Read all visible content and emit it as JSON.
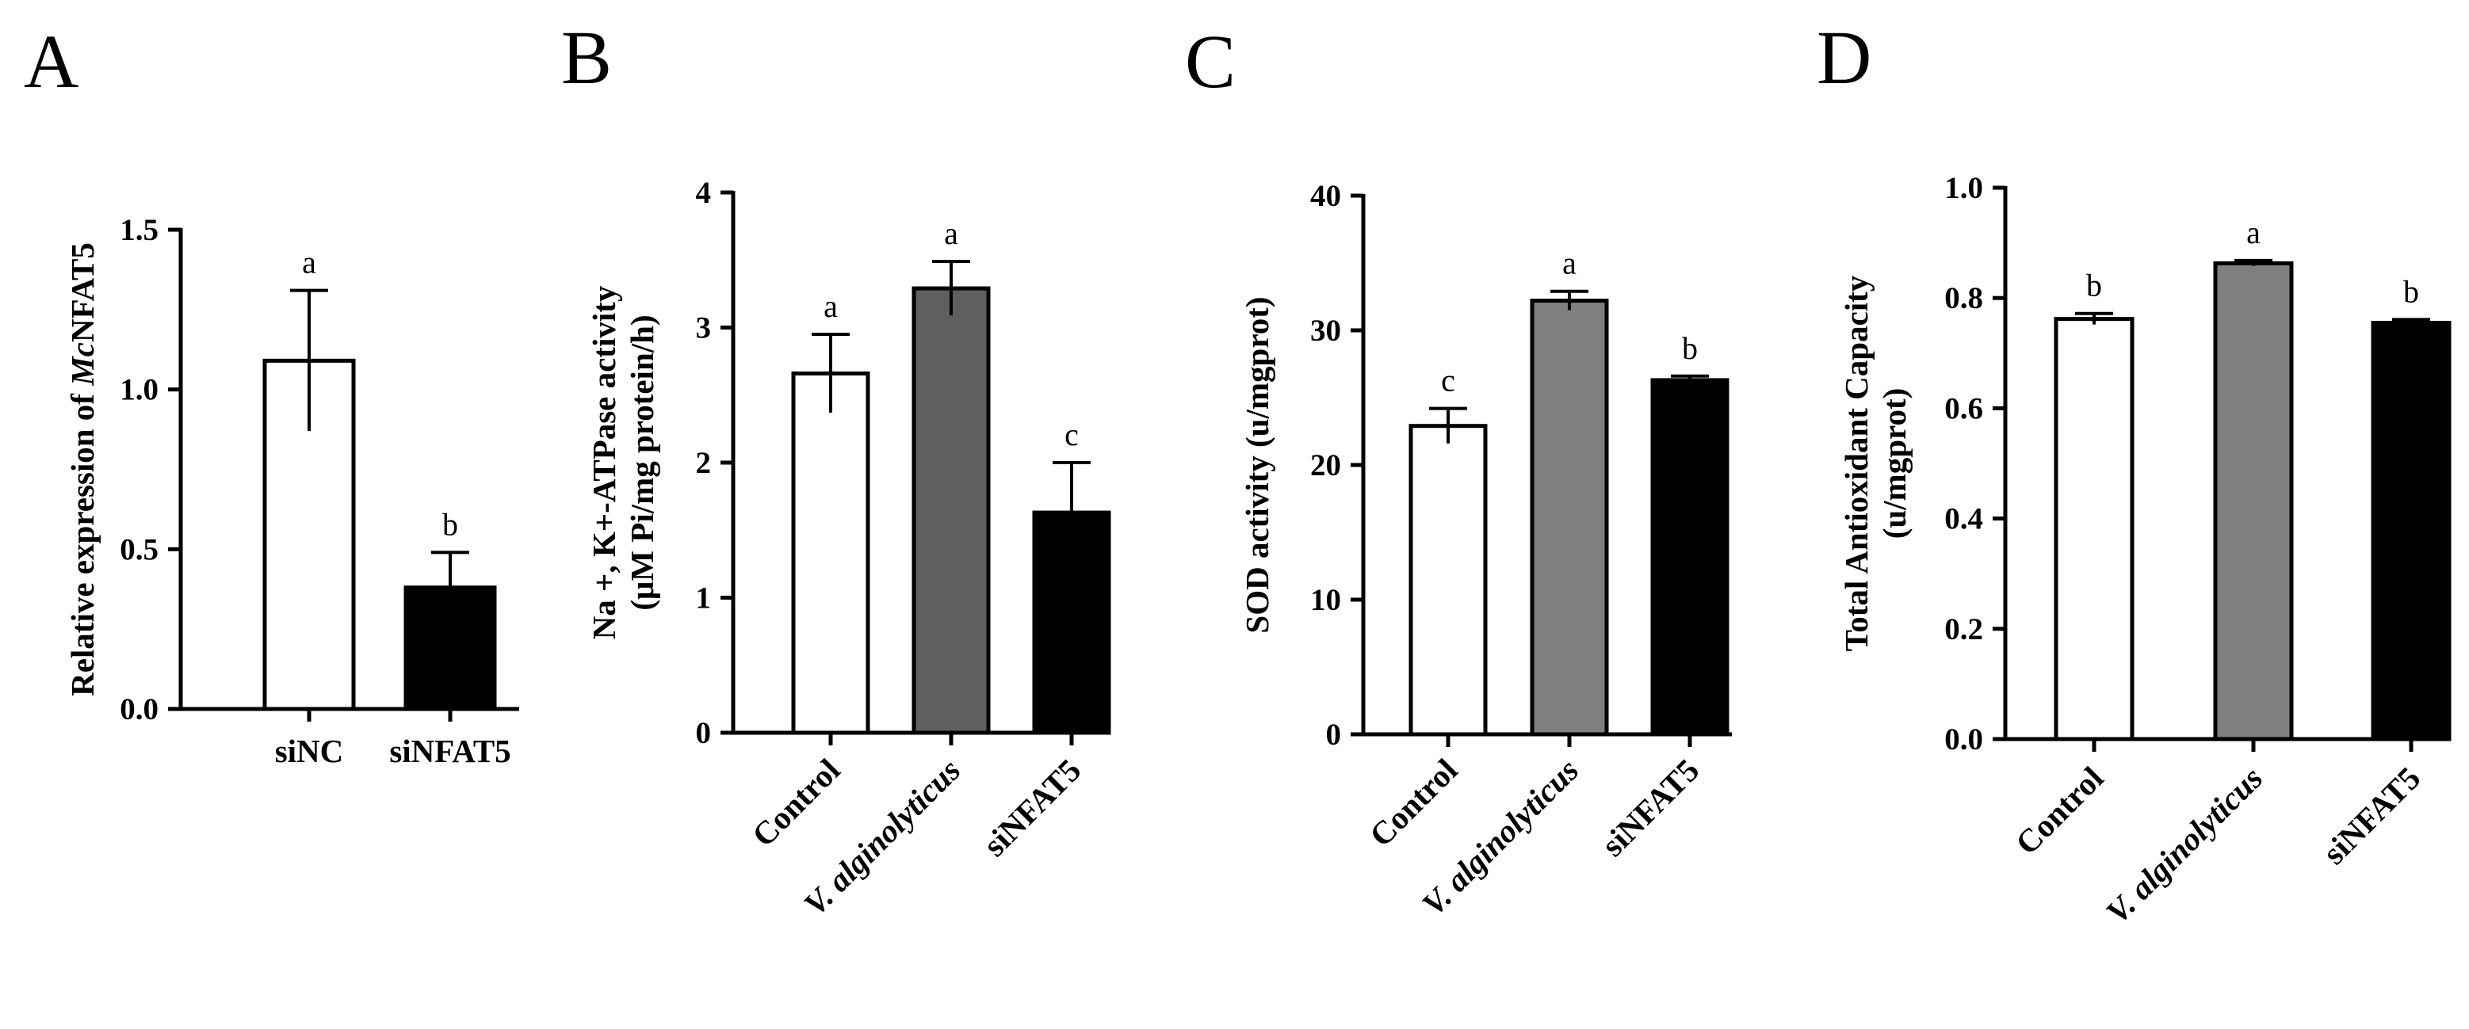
{
  "chart_data": [
    {
      "panel": "A",
      "type": "bar",
      "ylabel_lines": [
        [
          {
            "text": "Relative expression of "
          },
          {
            "text": "Mc",
            "italic": true
          },
          {
            "text": "NFAT5"
          }
        ]
      ],
      "categories": [
        "siNC",
        "siNFAT5"
      ],
      "category_italic": [
        false,
        false
      ],
      "values": [
        1.09,
        0.38
      ],
      "errors": [
        0.22,
        0.11
      ],
      "significance": [
        "a",
        "b"
      ],
      "bar_colors": [
        "#ffffff",
        "#000000"
      ],
      "ylim": [
        0,
        1.5
      ],
      "yticks": [
        "0.0",
        "0.5",
        "1.0",
        "1.5"
      ],
      "xlabel_rotation": 0
    },
    {
      "panel": "B",
      "type": "bar",
      "ylabel_lines": [
        [
          {
            "text": "Na +, K+-ATPase activity"
          }
        ],
        [
          {
            "text": "(μM Pi/mg protein/h)"
          }
        ]
      ],
      "categories": [
        "Control",
        "V. alginolyticus",
        "siNFAT5"
      ],
      "category_italic": [
        false,
        true,
        false
      ],
      "values": [
        2.66,
        3.29,
        1.63
      ],
      "errors": [
        0.29,
        0.2,
        0.37
      ],
      "significance": [
        "a",
        "a",
        "c"
      ],
      "bar_colors": [
        "#ffffff",
        "#5f5f5f",
        "#000000"
      ],
      "ylim": [
        0,
        4
      ],
      "yticks": [
        "0",
        "1",
        "2",
        "3",
        "4"
      ],
      "xlabel_rotation": -45
    },
    {
      "panel": "C",
      "type": "bar",
      "ylabel_lines": [
        [
          {
            "text": "SOD activity (u/mgprot)"
          }
        ]
      ],
      "categories": [
        "Control",
        "V. alginolyticus",
        "siNFAT5"
      ],
      "category_italic": [
        false,
        true,
        false
      ],
      "values": [
        22.9,
        32.2,
        26.3
      ],
      "errors": [
        1.3,
        0.7,
        0.3
      ],
      "significance": [
        "c",
        "a",
        "b"
      ],
      "bar_colors": [
        "#ffffff",
        "#7f7f7f",
        "#000000"
      ],
      "ylim": [
        0,
        40
      ],
      "yticks": [
        "0",
        "10",
        "20",
        "30",
        "40"
      ],
      "xlabel_rotation": -45
    },
    {
      "panel": "D",
      "type": "bar",
      "ylabel_lines": [
        [
          {
            "text": "Total Antioxidant Capacity"
          }
        ],
        [
          {
            "text": "(u/mgprot)"
          }
        ]
      ],
      "categories": [
        "Control",
        "V. alginolyticus",
        "siNFAT5"
      ],
      "category_italic": [
        false,
        true,
        false
      ],
      "values": [
        0.762,
        0.863,
        0.755
      ],
      "errors": [
        0.01,
        0.005,
        0.006
      ],
      "significance": [
        "b",
        "a",
        "b"
      ],
      "bar_colors": [
        "#ffffff",
        "#7f7f7f",
        "#000000"
      ],
      "ylim": [
        0,
        1.0
      ],
      "yticks": [
        "0.0",
        "0.2",
        "0.4",
        "0.6",
        "0.8",
        "1.0"
      ],
      "xlabel_rotation": -45
    }
  ]
}
